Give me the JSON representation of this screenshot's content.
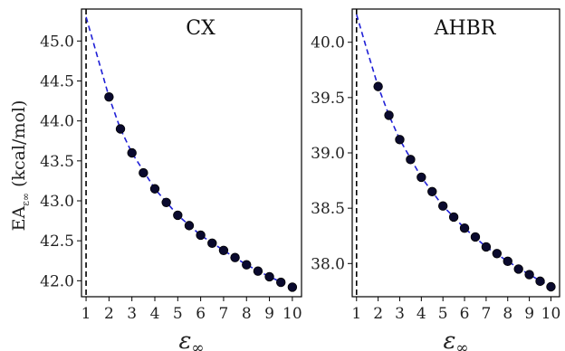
{
  "chart_data": [
    {
      "type": "scatter",
      "title": "CX",
      "xlabel": "ε∞",
      "ylabel": "EA",
      "ylabel_sub": "ε∞",
      "ylabel_unit": "(kcal/mol)",
      "xlim": [
        0.8,
        10.4
      ],
      "ylim": [
        41.8,
        45.4
      ],
      "xticks": [
        1,
        2,
        3,
        4,
        5,
        6,
        7,
        8,
        9,
        10
      ],
      "yticks": [
        42.0,
        42.5,
        43.0,
        43.5,
        44.0,
        44.5,
        45.0
      ],
      "vline_x": 1,
      "fit_curve": {
        "x": [
          1.0,
          1.5,
          2.0,
          2.5,
          3.0,
          4.0,
          5.0,
          6.0,
          7.0,
          8.0,
          9.0,
          10.0
        ],
        "y": [
          45.3,
          44.8,
          44.3,
          43.9,
          43.6,
          43.15,
          42.82,
          42.57,
          42.38,
          42.2,
          42.05,
          41.92
        ]
      },
      "series": [
        {
          "x": [
            2.0,
            2.5,
            3.0,
            3.5,
            4.0,
            4.5,
            5.0,
            5.5,
            6.0,
            6.5,
            7.0,
            7.5,
            8.0,
            8.5,
            9.0,
            9.5,
            10.0
          ],
          "y": [
            44.3,
            43.9,
            43.6,
            43.35,
            43.15,
            42.98,
            42.82,
            42.69,
            42.57,
            42.47,
            42.38,
            42.29,
            42.2,
            42.12,
            42.05,
            41.98,
            41.92
          ]
        }
      ]
    },
    {
      "type": "scatter",
      "title": "AHBR",
      "xlabel": "ε∞",
      "xlim": [
        0.8,
        10.4
      ],
      "ylim": [
        37.7,
        40.3
      ],
      "xticks": [
        1,
        2,
        3,
        4,
        5,
        6,
        7,
        8,
        9,
        10
      ],
      "yticks": [
        38.0,
        38.5,
        39.0,
        39.5,
        40.0
      ],
      "vline_x": 1,
      "fit_curve": {
        "x": [
          1.0,
          1.5,
          2.0,
          2.5,
          3.0,
          4.0,
          5.0,
          6.0,
          7.0,
          8.0,
          9.0,
          10.0
        ],
        "y": [
          40.25,
          39.92,
          39.6,
          39.34,
          39.12,
          38.78,
          38.52,
          38.32,
          38.15,
          38.02,
          37.9,
          37.79
        ]
      },
      "series": [
        {
          "x": [
            2.0,
            2.5,
            3.0,
            3.5,
            4.0,
            4.5,
            5.0,
            5.5,
            6.0,
            6.5,
            7.0,
            7.5,
            8.0,
            8.5,
            9.0,
            9.5,
            10.0
          ],
          "y": [
            39.6,
            39.34,
            39.12,
            38.94,
            38.78,
            38.65,
            38.52,
            38.42,
            38.32,
            38.24,
            38.15,
            38.09,
            38.02,
            37.95,
            37.9,
            37.84,
            37.79
          ]
        }
      ]
    }
  ],
  "style": {
    "point_color": "#0a0a2e",
    "curve_color": "#1f1fd6",
    "vline_color": "#000000"
  }
}
